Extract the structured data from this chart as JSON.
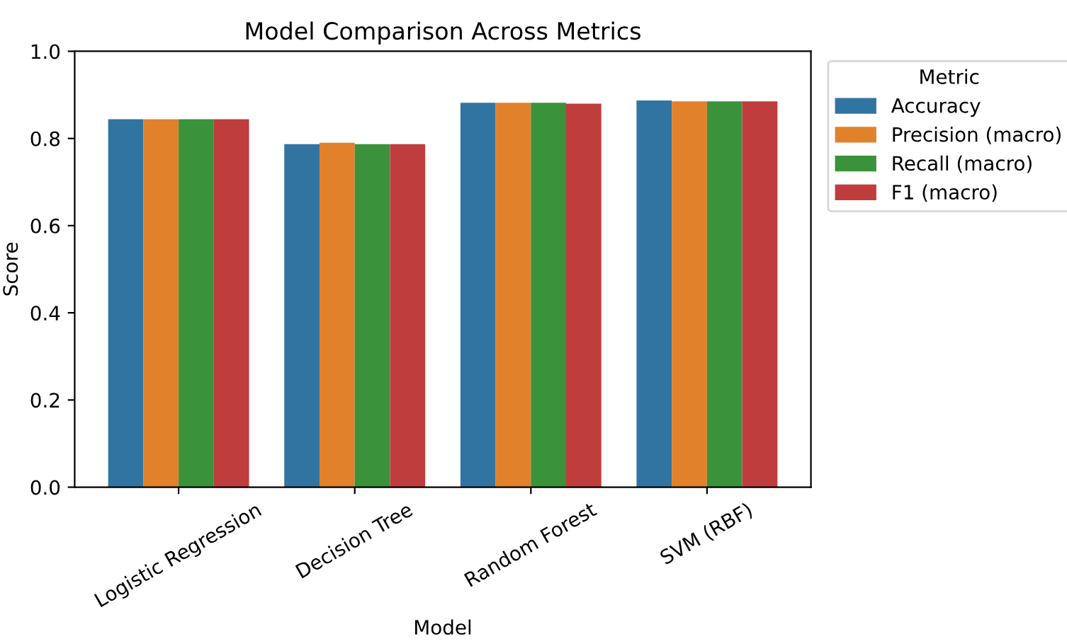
{
  "chart_data": {
    "type": "bar",
    "title": "Model Comparison Across Metrics",
    "xlabel": "Model",
    "ylabel": "Score",
    "legend_title": "Metric",
    "categories": [
      "Logistic Regression",
      "Decision Tree",
      "Random Forest",
      "SVM (RBF)"
    ],
    "series": [
      {
        "name": "Accuracy",
        "color": "#3274a1",
        "values": [
          0.844,
          0.787,
          0.882,
          0.887
        ]
      },
      {
        "name": "Precision (macro)",
        "color": "#e1812c",
        "values": [
          0.844,
          0.79,
          0.882,
          0.885
        ]
      },
      {
        "name": "Recall (macro)",
        "color": "#3a923a",
        "values": [
          0.844,
          0.787,
          0.882,
          0.885
        ]
      },
      {
        "name": "F1 (macro)",
        "color": "#c03d3e",
        "values": [
          0.844,
          0.787,
          0.88,
          0.885
        ]
      }
    ],
    "ylim": [
      0,
      1.0
    ],
    "yticks": [
      {
        "value": 0,
        "label": "0.0"
      },
      0.2,
      0.4,
      0.6,
      0.8,
      {
        "value": 1,
        "label": "1.0"
      }
    ],
    "legend": "right",
    "grid": false
  }
}
